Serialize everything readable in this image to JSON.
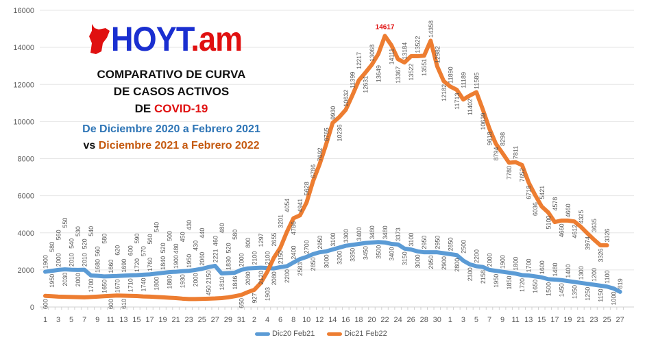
{
  "logo": {
    "text_main": "HOYT",
    "text_suffix": ".am"
  },
  "title": {
    "line1": "COMPARATIVO DE CURVA",
    "line2": "DE CASOS ACTIVOS",
    "line3_prefix": "DE ",
    "line3_highlight": "COVID-19",
    "sub1": "De Diciembre 2020 a Febrero 2021",
    "sub2_prefix": "vs ",
    "sub2": "Diciembre 2021 a Febrero 2022"
  },
  "colors": {
    "series1": "#5b9bd5",
    "series2": "#ed7d31",
    "peak_label": "#e01010"
  },
  "chart_data": {
    "type": "line",
    "title": "COMPARATIVO DE CURVA DE CASOS ACTIVOS DE COVID-19",
    "xlabel": "",
    "ylabel": "",
    "ylim": [
      0,
      16000
    ],
    "yticks": [
      0,
      2000,
      4000,
      6000,
      8000,
      10000,
      12000,
      14000,
      16000
    ],
    "xtick_labels": [
      "1",
      "3",
      "5",
      "7",
      "9",
      "11",
      "13",
      "15",
      "17",
      "19",
      "21",
      "23",
      "25",
      "27",
      "29",
      "31",
      "2",
      "4",
      "6",
      "8",
      "10",
      "12",
      "14",
      "16",
      "18",
      "20",
      "22",
      "24",
      "26",
      "28",
      "30",
      "1",
      "3",
      "5",
      "7",
      "9",
      "11",
      "13",
      "15",
      "17",
      "19",
      "21",
      "23",
      "25",
      "27"
    ],
    "xtick_indices": [
      0,
      2,
      4,
      6,
      8,
      10,
      12,
      14,
      16,
      18,
      20,
      22,
      24,
      26,
      28,
      30,
      32,
      34,
      36,
      38,
      40,
      42,
      44,
      46,
      48,
      50,
      52,
      54,
      56,
      58,
      60,
      62,
      64,
      66,
      68,
      70,
      72,
      74,
      76,
      78,
      80,
      82,
      84,
      86,
      88
    ],
    "num_points": 90,
    "grid": true,
    "legend_position": "bottom",
    "series": [
      {
        "name": "Dic20 Feb21",
        "color": "#5b9bd5",
        "values": [
          1900,
          1950,
          2000,
          2030,
          2010,
          2000,
          2010,
          1700,
          1680,
          1650,
          1660,
          1670,
          1690,
          1710,
          1720,
          1740,
          1760,
          1800,
          1840,
          1880,
          1900,
          1930,
          1950,
          2000,
          2060,
          2150,
          2221,
          1810,
          1830,
          1846,
          2000,
          2080,
          2100,
          2120,
          2100,
          2080,
          2150,
          2200,
          2400,
          2583,
          2700,
          2850,
          2950,
          3000,
          3100,
          3200,
          3300,
          3350,
          3400,
          3450,
          3480,
          3500,
          3480,
          3400,
          3373,
          3150,
          3100,
          3000,
          2950,
          2950,
          2950,
          2900,
          2850,
          2800,
          2500,
          2300,
          2200,
          2158,
          2000,
          1950,
          1900,
          1850,
          1800,
          1720,
          1700,
          1650,
          1600,
          1500,
          1480,
          1450,
          1400,
          1350,
          1300,
          1250,
          1200,
          1150,
          1100,
          1000,
          819
        ]
      },
      {
        "name": "Dic21 Feb22",
        "color": "#ed7d31",
        "peak_label": "14617",
        "values": [
          600,
          580,
          560,
          550,
          540,
          530,
          520,
          540,
          560,
          580,
          600,
          620,
          610,
          600,
          590,
          570,
          560,
          540,
          520,
          500,
          480,
          450,
          430,
          430,
          440,
          450,
          460,
          480,
          520,
          580,
          650,
          800,
          927,
          1297,
          1903,
          2655,
          3201,
          4054,
          4786,
          4941,
          5628,
          6786,
          7692,
          8765,
          9930,
          10236,
          10632,
          11399,
          12217,
          12631,
          13068,
          13649,
          14617,
          14111,
          13367,
          13184,
          13522,
          13522,
          13551,
          14358,
          12982,
          12182,
          11890,
          11713,
          11189,
          11402,
          11585,
          10639,
          9618,
          8794,
          8298,
          7780,
          7811,
          7652,
          6718,
          6036,
          5421,
          5100,
          4578,
          4660,
          4660,
          4612,
          4325,
          3974,
          3635,
          3326,
          3326
        ]
      }
    ]
  }
}
